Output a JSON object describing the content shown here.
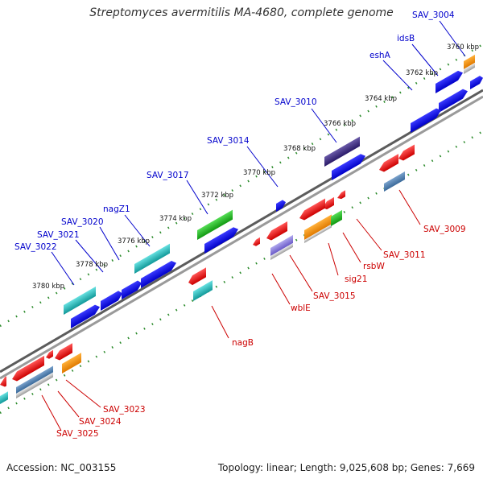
{
  "title": "Streptomyces avermitilis MA-4680, complete genome",
  "footer": {
    "accession": "Accession: NC_003155",
    "summary": "Topology: linear; Length: 9,025,608 bp; Genes: 7,669"
  },
  "colors": {
    "upper_label": "#0000cc",
    "lower_label": "#cc0000",
    "tick": "#2a8a2a",
    "backbone": "#888888"
  },
  "kbp_labels": [
    "3760 kbp",
    "3762 kbp",
    "3764 kbp",
    "3766 kbp",
    "3768 kbp",
    "3770 kbp",
    "3772 kbp",
    "3774 kbp",
    "3776 kbp",
    "3778 kbp",
    "3780 kbp"
  ],
  "upper_gene_labels": [
    "SAV_3004",
    "idsB",
    "eshA",
    "SAV_3010",
    "SAV_3014",
    "SAV_3017",
    "nagZ1",
    "SAV_3020",
    "SAV_3021",
    "SAV_3022"
  ],
  "lower_gene_labels": [
    "SAV_3009",
    "SAV_3011",
    "rsbW",
    "sig21",
    "SAV_3015",
    "wblE",
    "nagB",
    "SAV_3023",
    "SAV_3024",
    "SAV_3025"
  ]
}
